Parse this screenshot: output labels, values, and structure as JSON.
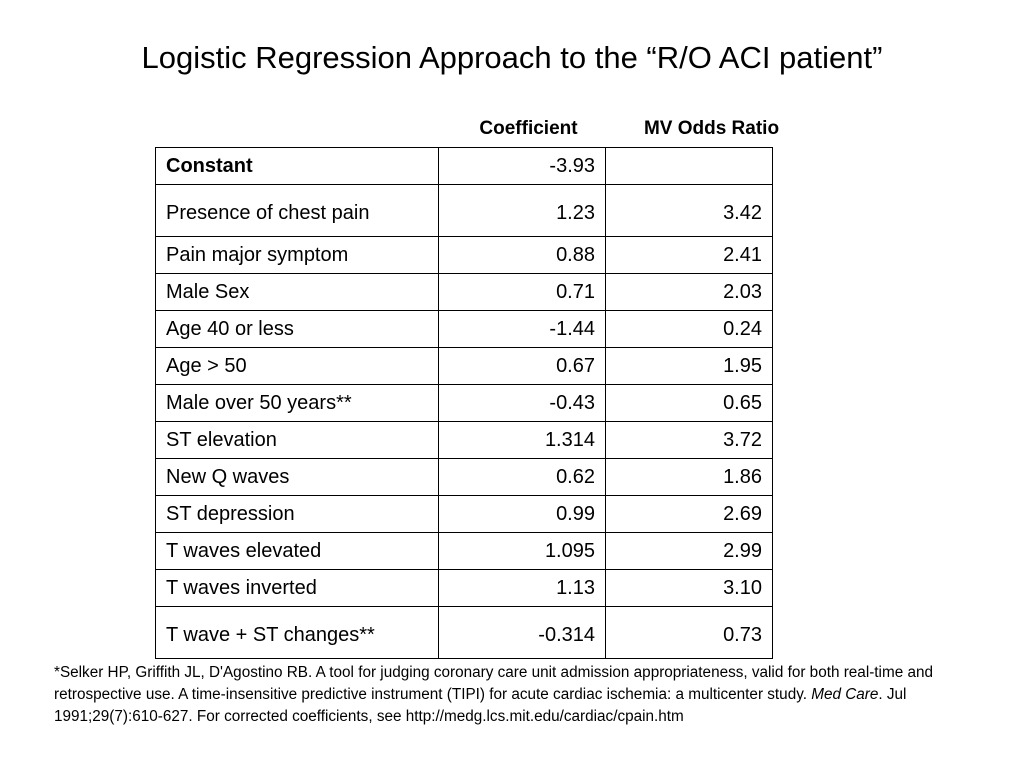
{
  "title": "Logistic Regression Approach to the “R/O ACI patient”",
  "table": {
    "header": [
      "Coefficient",
      "MV Odds Ratio"
    ],
    "rows": [
      [
        "Constant",
        "-3.93",
        ""
      ],
      [
        "Presence of chest pain",
        "1.23",
        "3.42"
      ],
      [
        "Pain major symptom",
        "0.88",
        "2.41"
      ],
      [
        "Male Sex",
        "0.71",
        "2.03"
      ],
      [
        "Age 40 or less",
        "-1.44",
        "0.24"
      ],
      [
        "Age > 50",
        "0.67",
        "1.95"
      ],
      [
        "Male over 50 years**",
        "-0.43",
        "0.65"
      ],
      [
        "ST elevation",
        "1.314",
        "3.72"
      ],
      [
        "New Q waves",
        "0.62",
        "1.86"
      ],
      [
        "ST depression",
        "0.99",
        "2.69"
      ],
      [
        "T waves elevated",
        "1.095",
        "2.99"
      ],
      [
        "T waves inverted",
        "1.13",
        "3.10"
      ],
      [
        "T wave + ST changes**",
        "-0.314",
        "0.73"
      ]
    ]
  },
  "footnote": {
    "text": "*Selker HP, Griffith JL, D'Agostino RB. A tool for judging coronary care unit admission appropriateness, valid for both real-time and retrospective use. A time-insensitive predictive instrument (TIPI) for acute cardiac ischemia: a multicenter study. ",
    "journal": "Med Care",
    "rest": ". Jul 1991;29(7):610-627.  For corrected coefficients, see http://medg.lcs.mit.edu/cardiac/cpain.htm"
  }
}
